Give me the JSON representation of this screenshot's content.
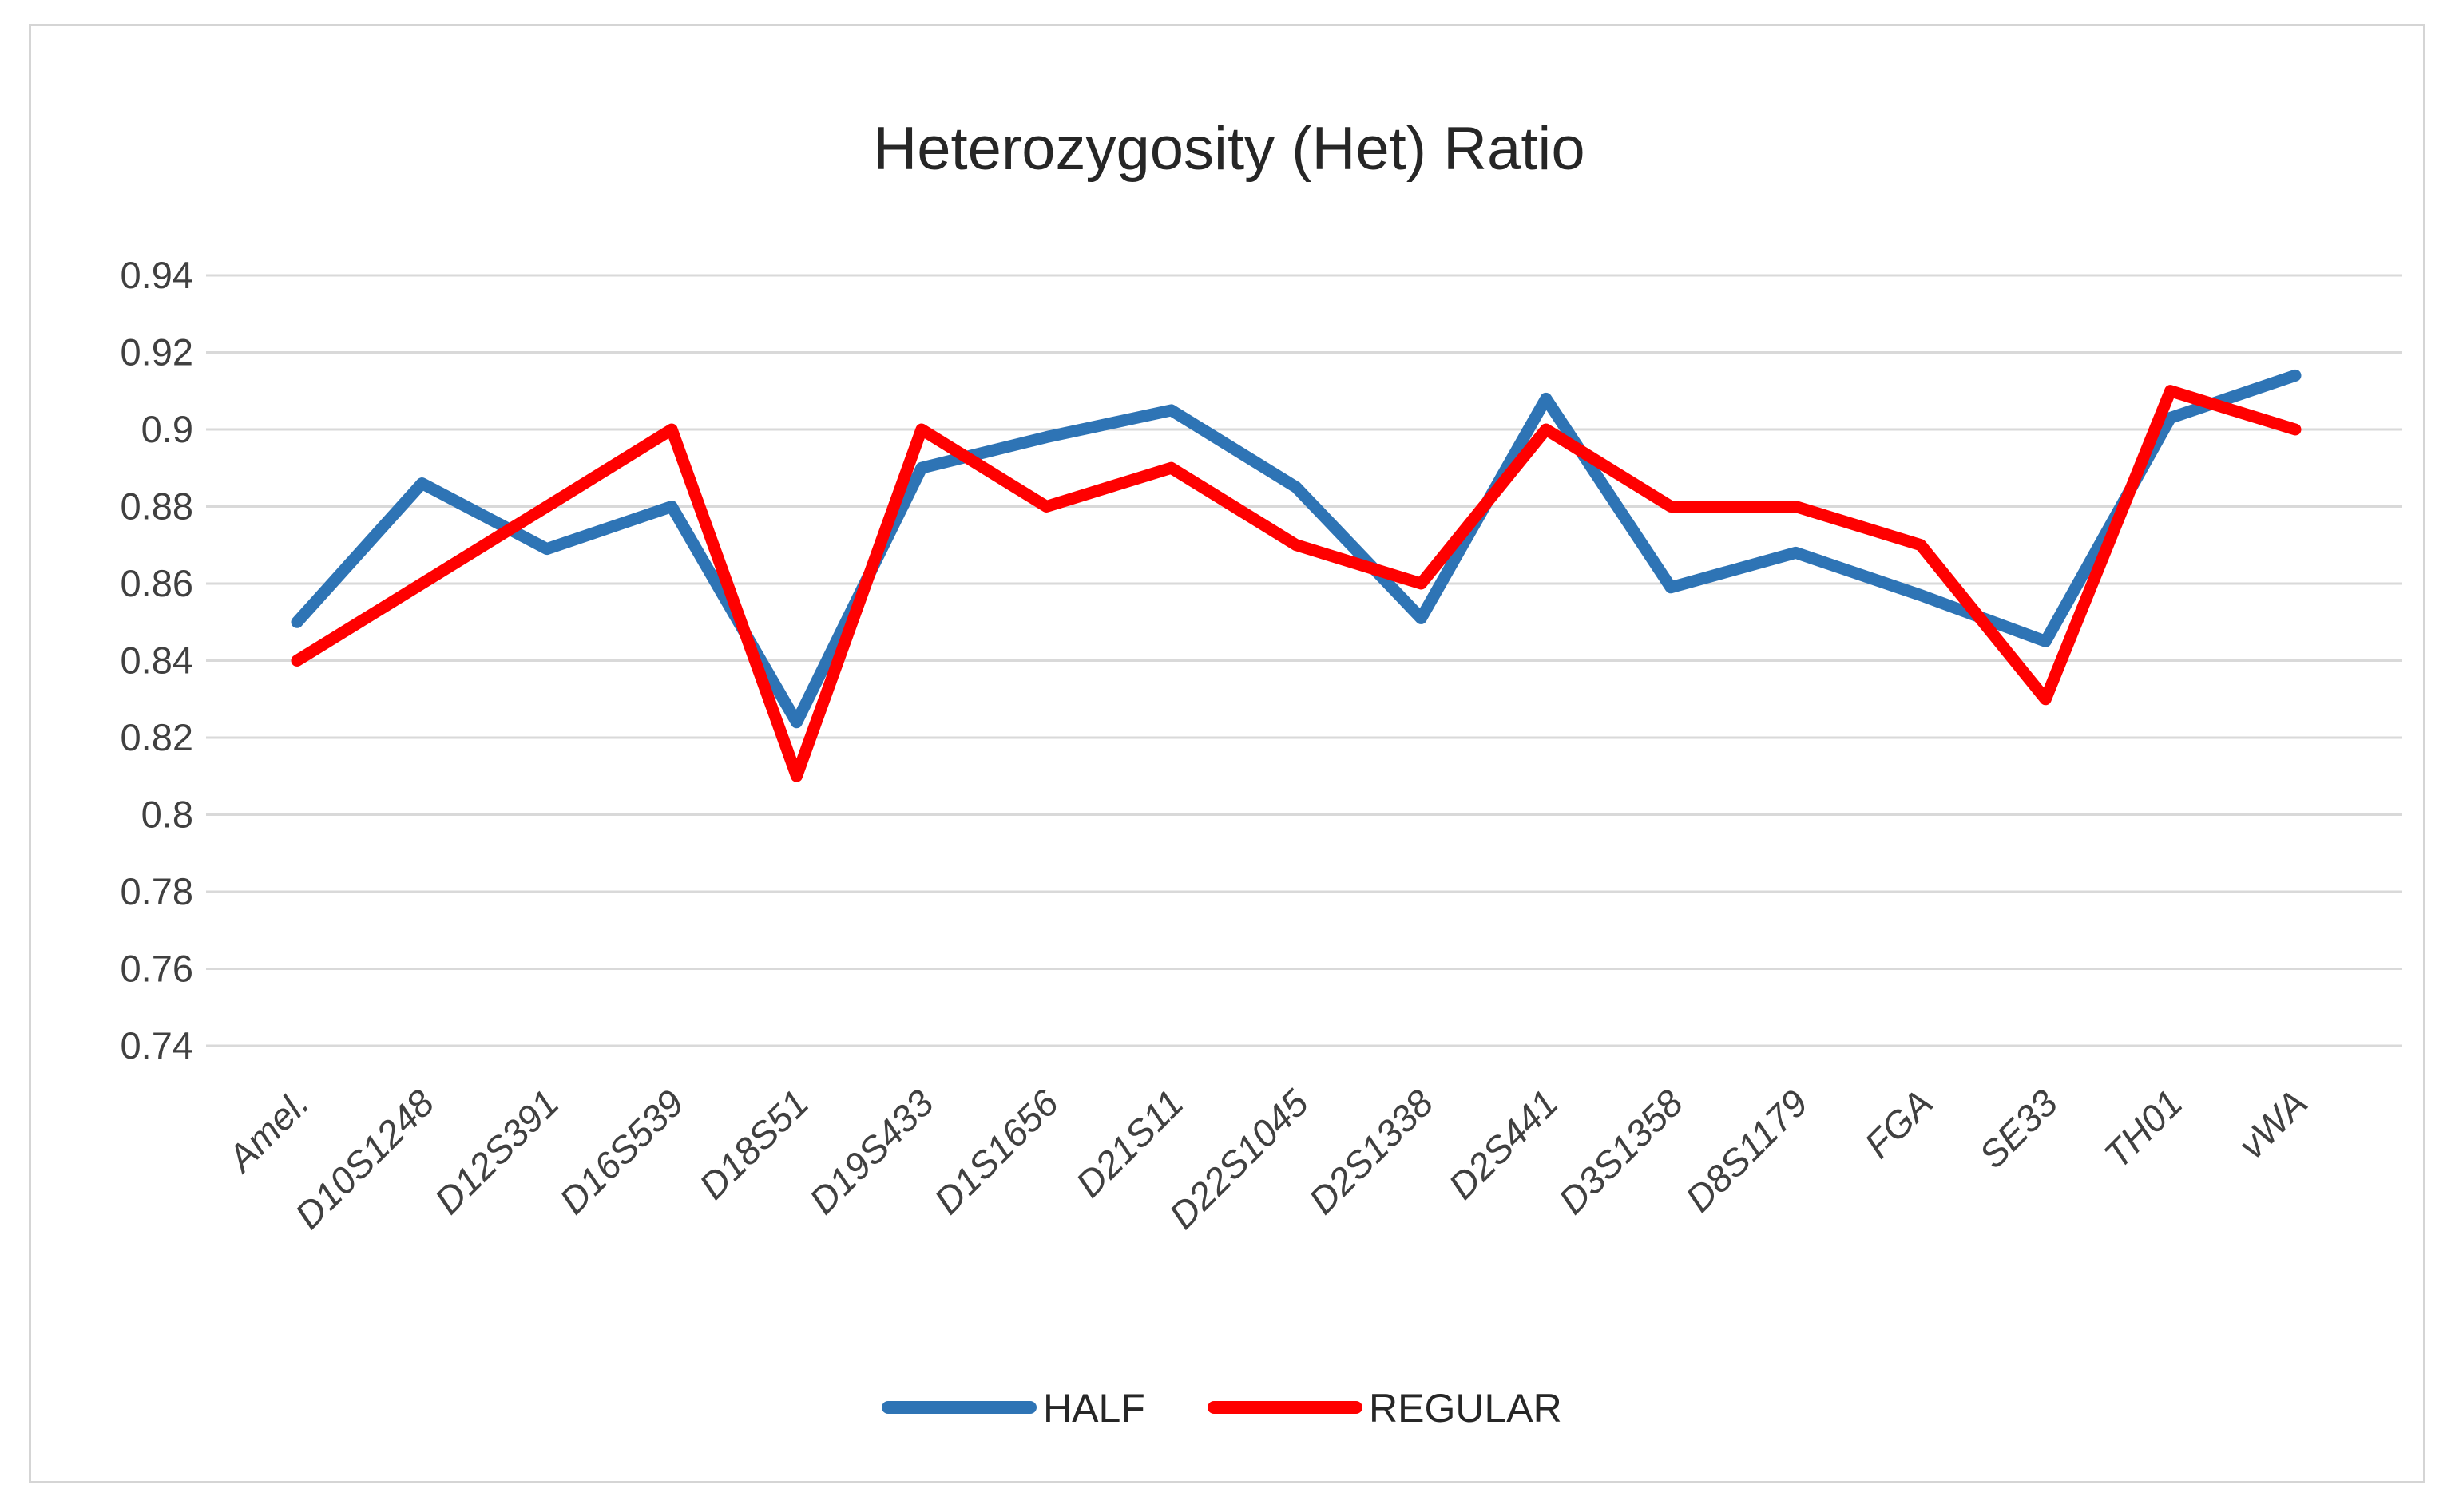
{
  "figure": {
    "title": "Heterozygosity (Het) Ratio"
  },
  "chart_data": {
    "type": "line",
    "title": "Heterozygosity (Het) Ratio",
    "xlabel": "",
    "ylabel": "",
    "categories": [
      "Amel.",
      "D10S1248",
      "D12S391",
      "D16S539",
      "D18S51",
      "D19S433",
      "D1S1656",
      "D21S11",
      "D22S1045",
      "D2S1338",
      "D2S441",
      "D3S1358",
      "D8S1179",
      "FGA",
      "SE33",
      "TH01",
      "vWA"
    ],
    "series": [
      {
        "name": "HALF",
        "color": "#2E74B5",
        "values": [
          0.85,
          0.886,
          0.869,
          0.88,
          0.824,
          0.89,
          0.898,
          0.905,
          0.885,
          0.851,
          0.908,
          0.859,
          0.868,
          0.857,
          0.845,
          0.903,
          0.914
        ]
      },
      {
        "name": "REGULAR",
        "color": "#FF0000",
        "values": [
          0.84,
          0.86,
          0.88,
          0.9,
          0.81,
          0.9,
          0.88,
          0.89,
          0.87,
          0.86,
          0.9,
          0.88,
          0.88,
          0.87,
          0.83,
          0.91,
          0.9
        ]
      }
    ],
    "ylim": [
      0.74,
      0.94
    ],
    "y_tick_labels": [
      "0.94",
      "0.92",
      "0.9",
      "0.88",
      "0.86",
      "0.84",
      "0.82",
      "0.8",
      "0.78",
      "0.76",
      "0.74"
    ],
    "y_tick_step": 0.02,
    "grid": "horizontal",
    "legend_position": "bottom-center",
    "colors": {
      "gridline": "#D9D9D9",
      "axis_text": "#404040",
      "title_text": "#262626",
      "figure_border": "#D5D5D5",
      "background": "#FFFFFF"
    }
  }
}
